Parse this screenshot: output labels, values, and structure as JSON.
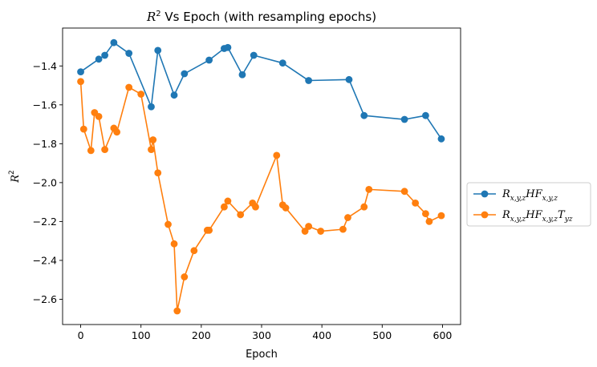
{
  "chart_data": {
    "type": "line",
    "title": "R² Vs Epoch (with resampling epochs)",
    "xlabel": "Epoch",
    "ylabel": "R²",
    "xlim": [
      -30,
      630
    ],
    "ylim": [
      -2.73,
      -1.205
    ],
    "xticks": [
      0,
      100,
      200,
      300,
      400,
      500,
      600
    ],
    "xtick_labels": [
      "0",
      "100",
      "200",
      "300",
      "400",
      "500",
      "600"
    ],
    "yticks": [
      -2.6,
      -2.4,
      -2.2,
      -2.0,
      -1.8,
      -1.6,
      -1.4
    ],
    "ytick_labels": [
      "−2.6",
      "−2.4",
      "−2.2",
      "−2.0",
      "−1.8",
      "−1.6",
      "−1.4"
    ],
    "grid": false,
    "legend_placement": "outside-right",
    "series": [
      {
        "name": "R_{x,y,z}HF_{x,y,z}",
        "label_parts": [
          {
            "t": "R",
            "sub": false
          },
          {
            "t": "x,y,z",
            "sub": true
          },
          {
            "t": "HF",
            "sub": false
          },
          {
            "t": "x,y,z",
            "sub": true
          }
        ],
        "color": "#1f77b4",
        "x": [
          0,
          30,
          40,
          55,
          80,
          117,
          128,
          155,
          172,
          213,
          238,
          244,
          268,
          287,
          335,
          378,
          445,
          470,
          537,
          572,
          598
        ],
        "y": [
          -1.43,
          -1.365,
          -1.345,
          -1.28,
          -1.335,
          -1.61,
          -1.32,
          -1.55,
          -1.44,
          -1.37,
          -1.31,
          -1.305,
          -1.445,
          -1.345,
          -1.385,
          -1.475,
          -1.47,
          -1.655,
          -1.675,
          -1.655,
          -1.775
        ]
      },
      {
        "name": "R_{x,y,z}HF_{x,y,z}T_{yz}",
        "label_parts": [
          {
            "t": "R",
            "sub": false
          },
          {
            "t": "x,y,z",
            "sub": true
          },
          {
            "t": "HF",
            "sub": false
          },
          {
            "t": "x,y,z",
            "sub": true
          },
          {
            "t": "T",
            "sub": false
          },
          {
            "t": "yz",
            "sub": true
          }
        ],
        "color": "#ff7f0e",
        "x": [
          0,
          5,
          17,
          23,
          30,
          40,
          55,
          60,
          80,
          100,
          117,
          120,
          128,
          145,
          155,
          160,
          172,
          188,
          210,
          213,
          238,
          244,
          265,
          285,
          290,
          325,
          335,
          340,
          372,
          378,
          398,
          435,
          443,
          470,
          478,
          537,
          555,
          572,
          578,
          598
        ],
        "y": [
          -1.48,
          -1.725,
          -1.835,
          -1.64,
          -1.66,
          -1.83,
          -1.72,
          -1.74,
          -1.51,
          -1.545,
          -1.83,
          -1.78,
          -1.95,
          -2.215,
          -2.315,
          -2.66,
          -2.485,
          -2.35,
          -2.245,
          -2.245,
          -2.125,
          -2.095,
          -2.165,
          -2.105,
          -2.125,
          -1.86,
          -2.115,
          -2.13,
          -2.25,
          -2.225,
          -2.25,
          -2.24,
          -2.18,
          -2.125,
          -2.035,
          -2.045,
          -2.105,
          -2.16,
          -2.2,
          -2.17
        ]
      }
    ]
  }
}
